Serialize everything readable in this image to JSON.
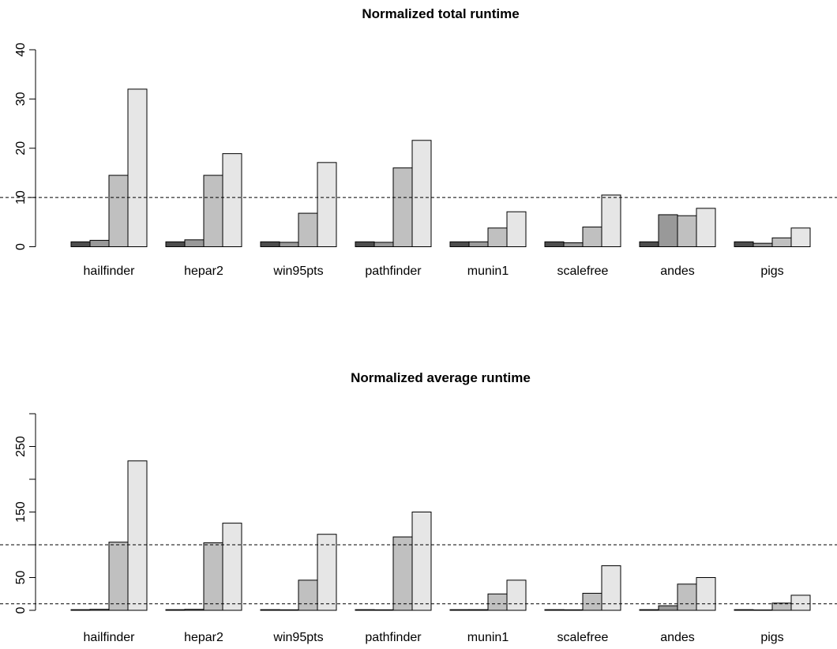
{
  "chart_data": [
    {
      "type": "bar",
      "title": "Normalized total runtime",
      "categories": [
        "hailfinder",
        "hepar2",
        "win95pts",
        "pathfinder",
        "munin1",
        "scalefree",
        "andes",
        "pigs"
      ],
      "series_colors": [
        "#4d4d4d",
        "#999999",
        "#c0c0c0",
        "#e6e6e6"
      ],
      "series": [
        {
          "values": [
            1,
            1,
            1,
            1,
            1,
            1,
            1,
            1
          ]
        },
        {
          "values": [
            1.3,
            1.4,
            0.9,
            0.9,
            1,
            0.8,
            6.5,
            0.7
          ]
        },
        {
          "values": [
            14.5,
            14.5,
            6.8,
            16,
            3.8,
            4,
            6.3,
            1.8
          ]
        },
        {
          "values": [
            32,
            18.9,
            17.1,
            21.6,
            7.1,
            10.5,
            7.8,
            3.8
          ]
        }
      ],
      "yticks": [
        0,
        10,
        20,
        30,
        40
      ],
      "ylim": [
        0,
        40
      ],
      "reference_lines": [
        10
      ],
      "xlabel": "",
      "ylabel": ""
    },
    {
      "type": "bar",
      "title": "Normalized average runtime",
      "categories": [
        "hailfinder",
        "hepar2",
        "win95pts",
        "pathfinder",
        "munin1",
        "scalefree",
        "andes",
        "pigs"
      ],
      "series_colors": [
        "#4d4d4d",
        "#999999",
        "#c0c0c0",
        "#e6e6e6"
      ],
      "series": [
        {
          "values": [
            1,
            1,
            1,
            1,
            1,
            1,
            1,
            1
          ]
        },
        {
          "values": [
            1.5,
            1.5,
            0.8,
            0.8,
            1,
            0.8,
            7,
            0.6
          ]
        },
        {
          "values": [
            104,
            103,
            46,
            112,
            25,
            26,
            40,
            11
          ]
        },
        {
          "values": [
            228,
            133,
            116,
            150,
            46,
            68,
            50,
            23
          ]
        }
      ],
      "yticks": [
        0,
        50,
        100,
        150,
        200,
        250,
        300
      ],
      "ytick_labels": [
        "0",
        "50",
        "",
        "150",
        "",
        "250",
        ""
      ],
      "ylim": [
        0,
        300
      ],
      "reference_lines": [
        10,
        100
      ],
      "xlabel": "",
      "ylabel": ""
    }
  ]
}
